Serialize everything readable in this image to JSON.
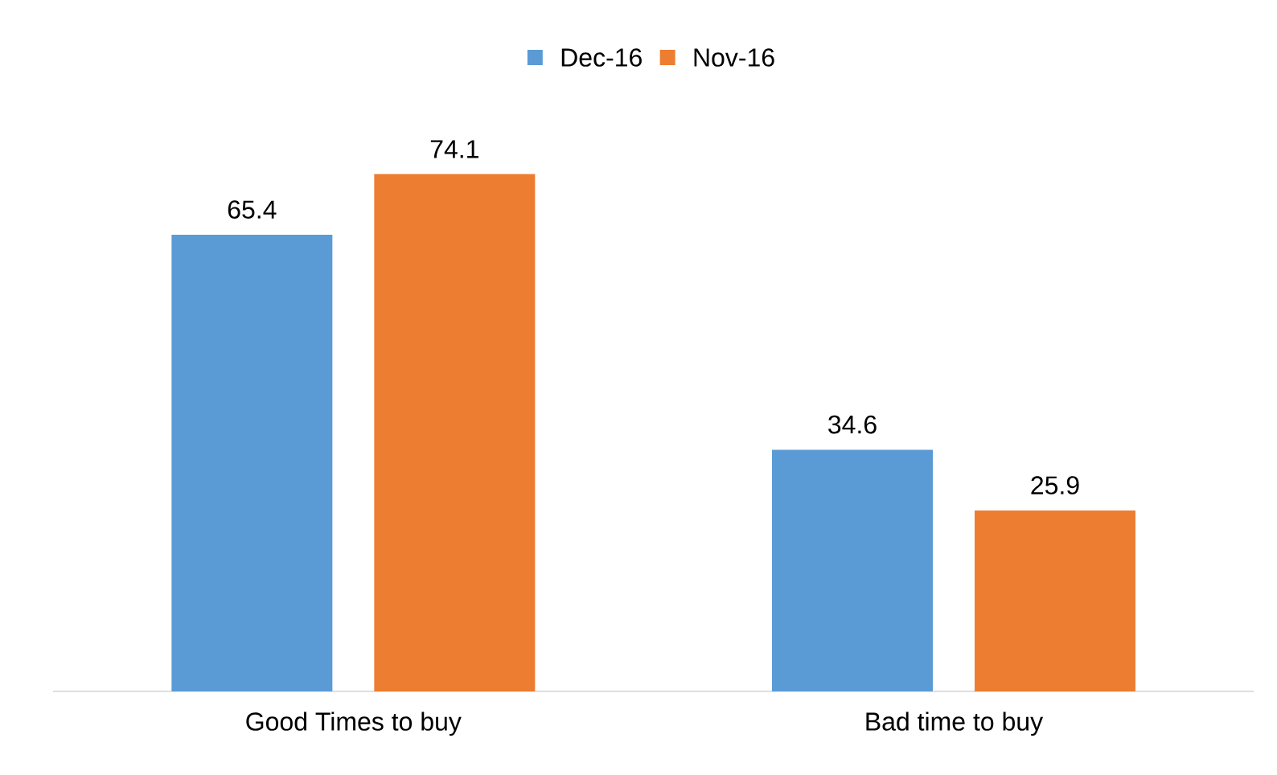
{
  "chart_data": {
    "type": "bar",
    "categories": [
      "Good Times to buy",
      "Bad time to buy"
    ],
    "series": [
      {
        "name": "Dec-16",
        "color": "#5b9bd5",
        "values": [
          65.4,
          34.6
        ]
      },
      {
        "name": "Nov-16",
        "color": "#ed7d31",
        "values": [
          74.1,
          25.9
        ]
      }
    ],
    "data_labels": true,
    "legend": "top"
  }
}
